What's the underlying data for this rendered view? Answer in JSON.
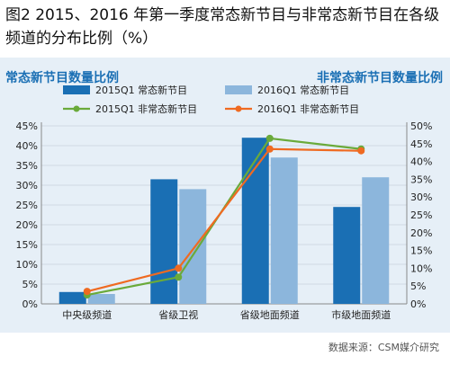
{
  "figure": {
    "title": "图2  2015、2016 年第一季度常态新节目与非常态新节目在各级频道的分布比例（%）",
    "left_subtitle": "常态新节目数量比例",
    "right_subtitle": "非常态新节目数量比例",
    "source": "数据来源：CSM媒介研究"
  },
  "colors": {
    "bar2015": "#1a6fb4",
    "bar2016": "#8cb6dc",
    "line2015": "#6aaa3a",
    "line2016": "#ef6a21",
    "panel": "#e6eff7",
    "accent": "#1a6fb4"
  },
  "chart_data": {
    "type": "bar+line",
    "categories": [
      "中央级频道",
      "省级卫视",
      "省级地面频道",
      "市级地面频道"
    ],
    "bar_series": [
      {
        "name": "2015Q1 常态新节目",
        "axis": "left",
        "values": [
          3.0,
          31.5,
          42.0,
          24.5
        ]
      },
      {
        "name": "2016Q1 常态新节目",
        "axis": "left",
        "values": [
          2.5,
          29.0,
          37.0,
          32.0
        ]
      }
    ],
    "line_series": [
      {
        "name": "2015Q1 非常态新节目",
        "axis": "right",
        "values": [
          2.5,
          7.5,
          46.5,
          43.5
        ]
      },
      {
        "name": "2016Q1 非常态新节目",
        "axis": "right",
        "values": [
          3.5,
          10.0,
          43.5,
          43.0
        ]
      }
    ],
    "left_axis": {
      "ylim": [
        0,
        45
      ],
      "ticks": [
        "0%",
        "5%",
        "10%",
        "15%",
        "20%",
        "25%",
        "30%",
        "35%",
        "40%",
        "45%"
      ]
    },
    "right_axis": {
      "ylim": [
        0,
        50
      ],
      "ticks": [
        "0%",
        "5%",
        "10%",
        "15%",
        "20%",
        "25%",
        "30%",
        "35%",
        "40%",
        "45%",
        "50%"
      ]
    },
    "legend_placement": "top",
    "grid": true
  }
}
